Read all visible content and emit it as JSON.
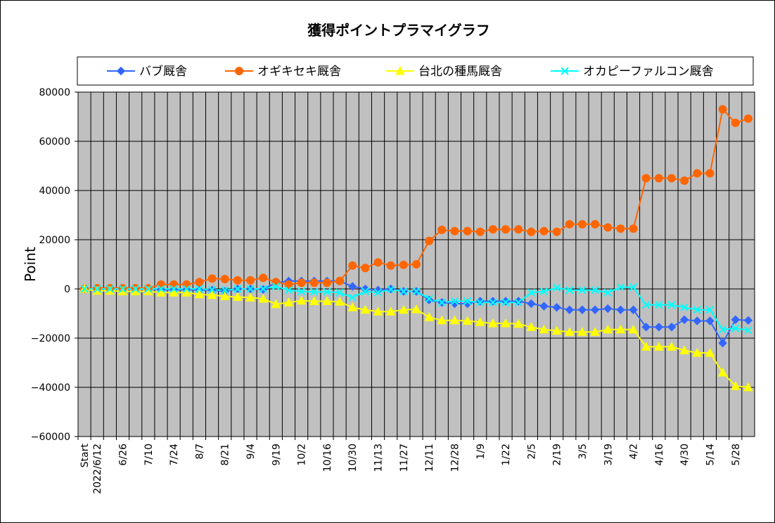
{
  "chart_data": {
    "type": "line",
    "title": "獲得ポイントプラマイグラフ",
    "ylabel": "Point",
    "xlabel": "",
    "ylim": [
      -60000,
      80000
    ],
    "yticks": [
      80000,
      60000,
      40000,
      20000,
      0,
      -20000,
      -40000,
      -60000
    ],
    "ytick_labels": [
      "80000",
      "60000",
      "40000",
      "20000",
      "0",
      "−20000",
      "−40000",
      "−60000"
    ],
    "grid": true,
    "legend_position": "top",
    "categories": [
      "Start",
      "2022/6/12",
      "",
      "6/26",
      "",
      "7/10",
      "",
      "7/24",
      "",
      "8/7",
      "",
      "8/21",
      "",
      "9/4",
      "",
      "9/19",
      "",
      "10/2",
      "",
      "10/16",
      "",
      "10/30",
      "",
      "11/13",
      "",
      "11/27",
      "",
      "12/11",
      "",
      "12/28",
      "",
      "1/9",
      "",
      "1/22",
      "",
      "2/5",
      "",
      "2/19",
      "",
      "3/5",
      "",
      "3/19",
      "",
      "4/2",
      "",
      "4/16",
      "",
      "4/30",
      "",
      "5/14",
      "",
      "5/28",
      ""
    ],
    "series": [
      {
        "name": "バブ厩舎",
        "color": "#3366ff",
        "marker": "diamond",
        "values": [
          0,
          0,
          0,
          0,
          0,
          0,
          -300,
          -300,
          -300,
          -500,
          -500,
          -1000,
          0,
          0,
          -200,
          2500,
          3200,
          3200,
          3200,
          3200,
          3200,
          1000,
          0,
          -500,
          0,
          -1000,
          -1000,
          -4500,
          -5500,
          -6000,
          -6000,
          -5000,
          -5000,
          -5000,
          -5000,
          -6000,
          -7000,
          -7500,
          -8500,
          -8500,
          -8500,
          -8000,
          -8500,
          -8500,
          -15500,
          -15500,
          -15500,
          -12500,
          -13000,
          -13000,
          -22000,
          -12500,
          -12800
        ]
      },
      {
        "name": "オギキセキ厩舎",
        "color": "#ff6600",
        "marker": "circle",
        "values": [
          0,
          300,
          300,
          300,
          300,
          300,
          1800,
          1800,
          1800,
          2800,
          4200,
          4000,
          3500,
          3500,
          4500,
          2800,
          1800,
          2500,
          2500,
          2500,
          3200,
          9500,
          8500,
          10800,
          9500,
          9800,
          10000,
          19500,
          24000,
          23500,
          23500,
          23200,
          24200,
          24200,
          24200,
          23200,
          23500,
          23200,
          26300,
          26300,
          26300,
          25000,
          24500,
          24500,
          45000,
          45000,
          45000,
          44000,
          47000,
          47000,
          73000,
          67500,
          69200
        ]
      },
      {
        "name": "台北の種馬厩舎",
        "color": "#ffff00",
        "marker": "triangle",
        "values": [
          0,
          -800,
          -800,
          -1000,
          -1000,
          -1000,
          -1500,
          -1500,
          -1500,
          -2200,
          -2500,
          -3000,
          -3300,
          -3500,
          -4000,
          -6200,
          -5500,
          -4800,
          -5000,
          -5000,
          -5200,
          -7500,
          -8500,
          -9200,
          -9200,
          -8500,
          -8300,
          -11500,
          -12800,
          -12800,
          -13000,
          -13500,
          -14000,
          -14000,
          -14200,
          -15500,
          -16500,
          -17000,
          -17500,
          -17500,
          -17500,
          -16500,
          -16500,
          -16500,
          -23500,
          -23500,
          -23500,
          -25000,
          -26000,
          -26000,
          -34000,
          -39500,
          -40000
        ]
      },
      {
        "name": "オカピーファルコン厩舎",
        "color": "#00ffff",
        "marker": "x",
        "values": [
          0,
          0,
          0,
          0,
          0,
          0,
          0,
          0,
          0,
          0,
          -300,
          -500,
          0,
          0,
          0,
          1000,
          -500,
          -1000,
          -1200,
          -1200,
          -1500,
          -3500,
          -1000,
          -1500,
          -200,
          -1000,
          -1000,
          -4000,
          -5500,
          -5000,
          -5000,
          -5500,
          -5500,
          -5500,
          -5500,
          -1500,
          -1000,
          500,
          -500,
          -500,
          -500,
          -1500,
          700,
          700,
          -6500,
          -6500,
          -6500,
          -7500,
          -8500,
          -8500,
          -16500,
          -16000,
          -16800
        ]
      }
    ]
  }
}
